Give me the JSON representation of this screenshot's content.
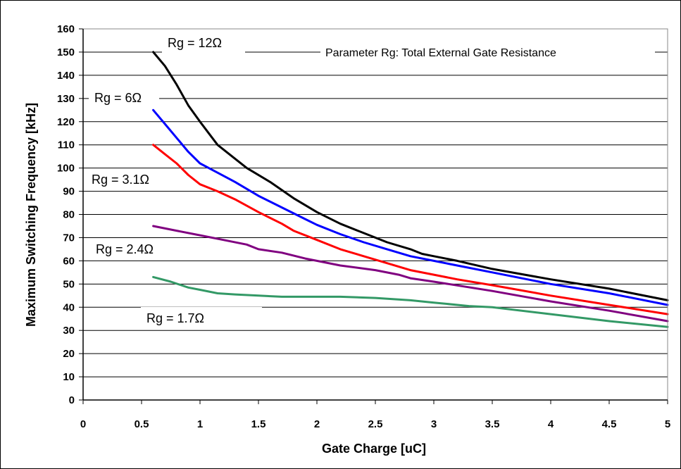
{
  "chart_data": {
    "type": "line",
    "title": "",
    "xlabel": "Gate Charge [uC]",
    "ylabel": "Maximum Switching Frequency [kHz]",
    "xlim": [
      0,
      5
    ],
    "ylim": [
      0,
      160
    ],
    "x_ticks": [
      "0",
      "0.5",
      "1",
      "1.5",
      "2",
      "2.5",
      "3",
      "3.5",
      "4",
      "4.5",
      "5"
    ],
    "y_ticks": [
      "0",
      "10",
      "20",
      "30",
      "40",
      "50",
      "60",
      "70",
      "80",
      "90",
      "100",
      "110",
      "120",
      "130",
      "140",
      "150",
      "160"
    ],
    "grid": "horizontal",
    "annotation": "Parameter Rg: Total External Gate Resistance",
    "series": [
      {
        "name": "Rg = 12Ω",
        "color": "#000000",
        "points": [
          [
            0.6,
            150
          ],
          [
            0.7,
            144
          ],
          [
            0.8,
            136
          ],
          [
            0.9,
            127
          ],
          [
            1.0,
            120
          ],
          [
            1.15,
            110
          ],
          [
            1.3,
            104
          ],
          [
            1.4,
            100
          ],
          [
            1.6,
            94
          ],
          [
            1.8,
            87
          ],
          [
            2.0,
            81
          ],
          [
            2.2,
            76
          ],
          [
            2.4,
            72
          ],
          [
            2.6,
            68
          ],
          [
            2.8,
            65
          ],
          [
            2.9,
            63
          ],
          [
            3.0,
            62
          ],
          [
            3.2,
            60
          ],
          [
            3.5,
            56.5
          ],
          [
            4.0,
            52
          ],
          [
            4.5,
            48
          ],
          [
            5.0,
            43
          ]
        ]
      },
      {
        "name": "Rg = 6Ω",
        "color": "#0000ff",
        "points": [
          [
            0.6,
            125
          ],
          [
            0.7,
            119
          ],
          [
            0.8,
            113
          ],
          [
            0.9,
            107
          ],
          [
            1.0,
            102
          ],
          [
            1.15,
            98
          ],
          [
            1.3,
            94
          ],
          [
            1.5,
            88
          ],
          [
            1.7,
            83
          ],
          [
            1.9,
            78
          ],
          [
            2.0,
            75.5
          ],
          [
            2.2,
            71.5
          ],
          [
            2.4,
            68
          ],
          [
            2.6,
            65
          ],
          [
            2.8,
            62
          ],
          [
            3.0,
            60
          ],
          [
            3.2,
            58
          ],
          [
            3.5,
            55
          ],
          [
            4.0,
            50
          ],
          [
            4.5,
            46
          ],
          [
            5.0,
            41
          ]
        ]
      },
      {
        "name": "Rg = 3.1Ω",
        "color": "#ff0000",
        "points": [
          [
            0.6,
            110
          ],
          [
            0.7,
            106
          ],
          [
            0.8,
            102
          ],
          [
            0.9,
            97
          ],
          [
            1.0,
            93
          ],
          [
            1.15,
            90
          ],
          [
            1.3,
            86.5
          ],
          [
            1.5,
            81
          ],
          [
            1.7,
            76
          ],
          [
            1.8,
            73
          ],
          [
            2.0,
            69
          ],
          [
            2.2,
            65
          ],
          [
            2.4,
            62
          ],
          [
            2.6,
            59
          ],
          [
            2.8,
            56
          ],
          [
            3.0,
            54
          ],
          [
            3.2,
            52
          ],
          [
            3.5,
            49.5
          ],
          [
            4.0,
            45
          ],
          [
            4.5,
            41
          ],
          [
            5.0,
            37
          ]
        ]
      },
      {
        "name": "Rg = 2.4Ω",
        "color": "#800080",
        "points": [
          [
            0.6,
            75
          ],
          [
            0.8,
            73
          ],
          [
            1.0,
            71
          ],
          [
            1.2,
            69
          ],
          [
            1.4,
            67
          ],
          [
            1.5,
            65
          ],
          [
            1.7,
            63.5
          ],
          [
            1.9,
            61
          ],
          [
            2.0,
            60
          ],
          [
            2.2,
            58
          ],
          [
            2.5,
            56
          ],
          [
            2.7,
            54
          ],
          [
            2.8,
            52.5
          ],
          [
            3.0,
            51
          ],
          [
            3.5,
            47
          ],
          [
            4.0,
            42.5
          ],
          [
            4.5,
            38.5
          ],
          [
            5.0,
            34
          ]
        ]
      },
      {
        "name": "Rg = 1.7Ω",
        "color": "#339966",
        "points": [
          [
            0.6,
            53
          ],
          [
            0.75,
            51
          ],
          [
            0.9,
            48.5
          ],
          [
            1.0,
            47.5
          ],
          [
            1.15,
            46
          ],
          [
            1.3,
            45.5
          ],
          [
            1.5,
            45
          ],
          [
            1.7,
            44.5
          ],
          [
            2.0,
            44.5
          ],
          [
            2.2,
            44.5
          ],
          [
            2.5,
            44
          ],
          [
            2.8,
            43
          ],
          [
            3.0,
            42
          ],
          [
            3.3,
            40.5
          ],
          [
            3.5,
            40
          ],
          [
            4.0,
            37
          ],
          [
            4.5,
            34
          ],
          [
            5.0,
            31.5
          ]
        ]
      }
    ]
  }
}
